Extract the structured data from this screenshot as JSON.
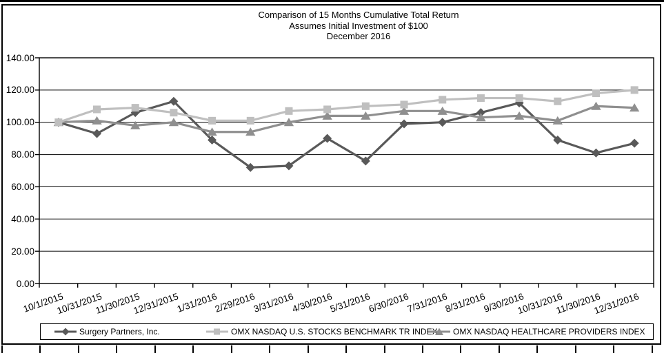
{
  "chart_data": {
    "type": "line",
    "title_lines": [
      "Comparison of 15 Months Cumulative Total Return",
      "Assumes Initial Investment of $100",
      "December 2016"
    ],
    "categories": [
      "10/1/2015",
      "10/31/2015",
      "11/30/2015",
      "12/31/2015",
      "1/31/2016",
      "2/29/2016",
      "3/31/2016",
      "4/30/2016",
      "5/31/2016",
      "6/30/2016",
      "7/31/2016",
      "8/31/2016",
      "9/30/2016",
      "10/31/2016",
      "11/30/2016",
      "12/31/2016"
    ],
    "series": [
      {
        "name": "Surgery Partners, Inc.",
        "marker": "diamond",
        "color": "#595959",
        "values": [
          100,
          93,
          106,
          113,
          89,
          72,
          73,
          90,
          76,
          99,
          100,
          106,
          112,
          89,
          81,
          87
        ]
      },
      {
        "name": "OMX NASDAQ U.S. STOCKS BENCHMARK TR INDEX",
        "marker": "square",
        "color": "#bfbfbf",
        "values": [
          100,
          108,
          109,
          106,
          101,
          101,
          107,
          108,
          110,
          111,
          114,
          115,
          115,
          113,
          118,
          120
        ]
      },
      {
        "name": "OMX NASDAQ HEALTHCARE PROVIDERS INDEX",
        "marker": "triangle",
        "color": "#8f8f8f",
        "values": [
          100,
          101,
          98,
          100,
          94,
          94,
          100,
          104,
          104,
          107,
          107,
          103,
          104,
          101,
          110,
          109
        ]
      }
    ],
    "ylim": [
      0,
      140
    ],
    "ytick_labels": [
      "0.00",
      "20.00",
      "40.00",
      "60.00",
      "80.00",
      "100.00",
      "120.00",
      "140.00"
    ],
    "grid": true,
    "legend_position": "bottom",
    "axis_color": "#000000",
    "background_color": "#ffffff"
  }
}
